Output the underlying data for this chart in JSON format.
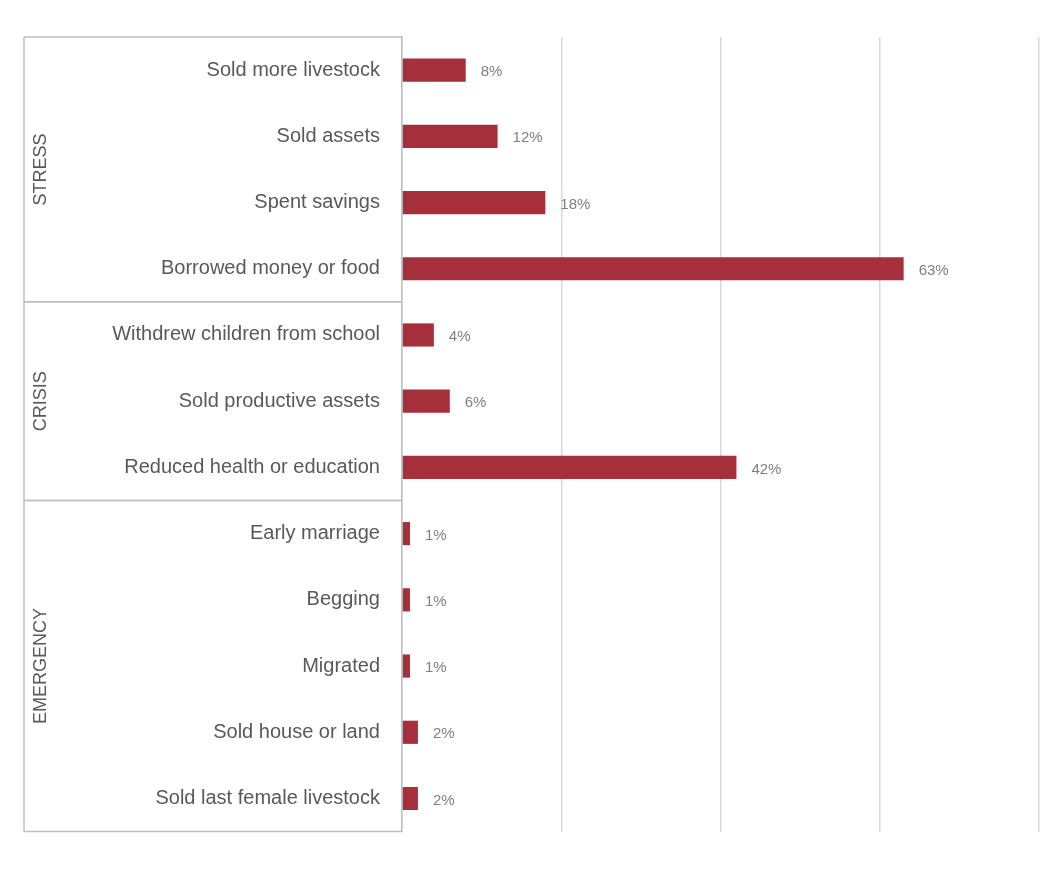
{
  "chart_data": {
    "type": "bar",
    "orientation": "horizontal",
    "categories": [
      "Sold more livestock",
      "Sold assets",
      "Spent savings",
      "Borrowed money or food",
      "Withdrew children from school",
      "Sold productive assets",
      "Reduced health or education",
      "Early marriage",
      "Begging",
      "Migrated",
      "Sold house or land",
      "Sold last female livestock"
    ],
    "values": [
      8,
      12,
      18,
      63,
      4,
      6,
      42,
      1,
      1,
      1,
      2,
      2
    ],
    "value_labels": [
      "8%",
      "12%",
      "18%",
      "63%",
      "4%",
      "6%",
      "42%",
      "1%",
      "1%",
      "1%",
      "2%",
      "2%"
    ],
    "color": "#a62f3c",
    "xlim": [
      0,
      80
    ],
    "xticks": [
      {
        "value": 0,
        "label": null
      },
      {
        "value": 20,
        "label": null
      },
      {
        "value": 40,
        "label": null
      },
      {
        "value": 60,
        "label": null
      },
      {
        "value": 80,
        "label": null
      }
    ],
    "grid": "x",
    "legend": false,
    "annotations": [
      "STRESS",
      "CRISIS",
      "EMERGENCY"
    ]
  }
}
